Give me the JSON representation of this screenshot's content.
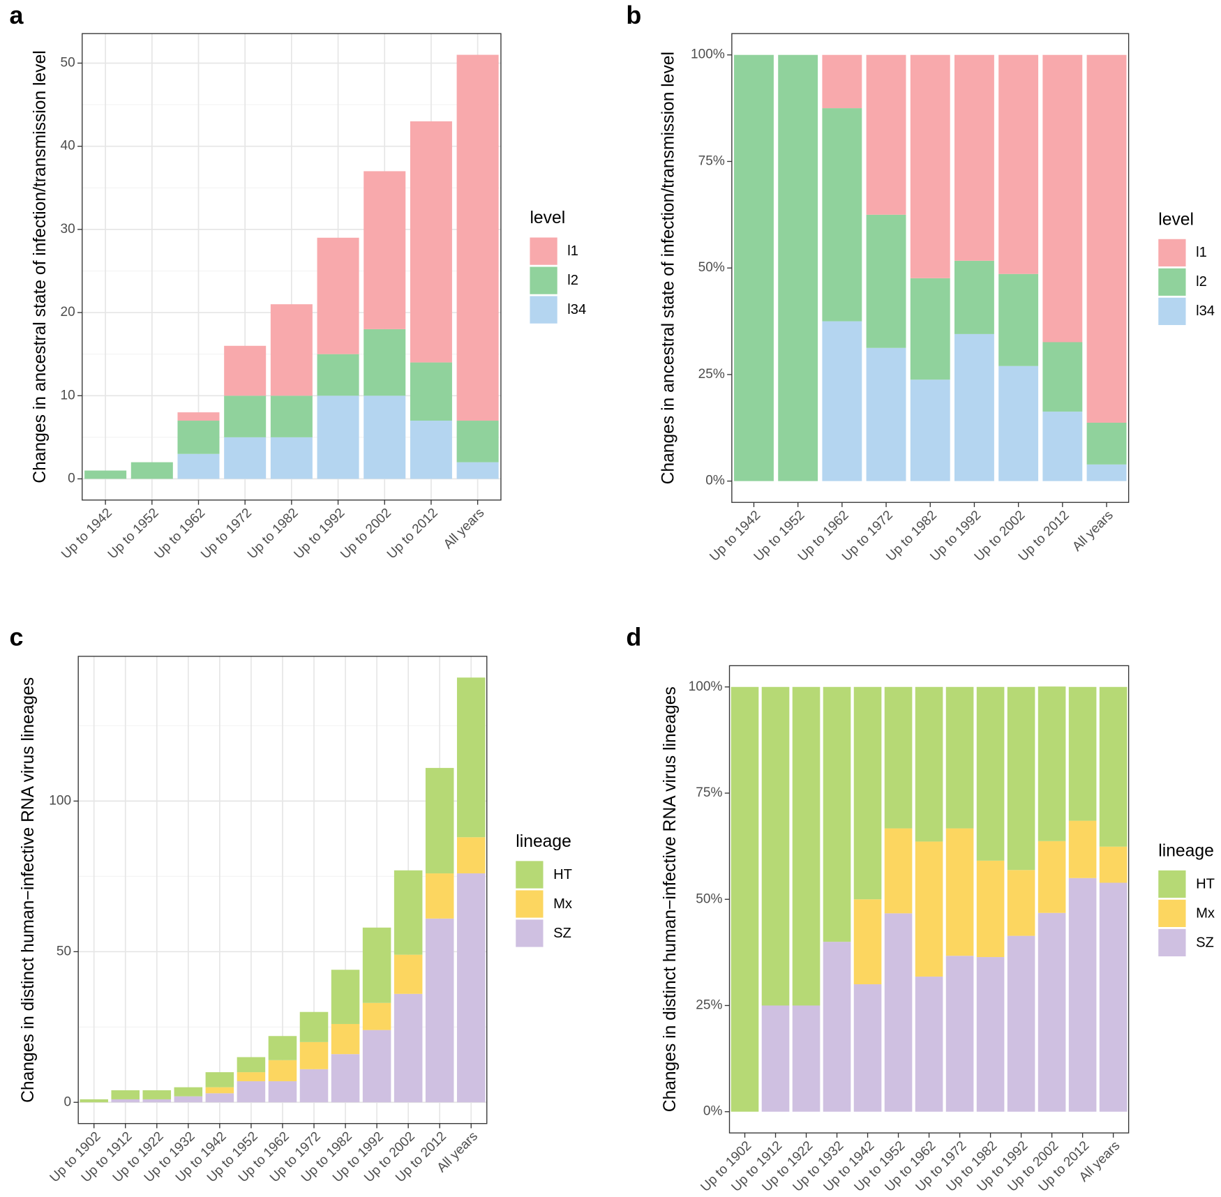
{
  "chart_data": [
    {
      "type": "bar",
      "stacked": true,
      "panel": "a",
      "ylabel": "Changes in ancestral state of infection/transmission level",
      "legend_title": "level",
      "categories": [
        "Up to 1942",
        "Up to 1952",
        "Up to 1962",
        "Up to 1972",
        "Up to 1982",
        "Up to 1992",
        "Up to 2002",
        "Up to 2012",
        "All years"
      ],
      "series": [
        {
          "name": "l1",
          "color": "#f8a9ac",
          "values": [
            0,
            0,
            1,
            6,
            11,
            14,
            19,
            29,
            44
          ]
        },
        {
          "name": "l2",
          "color": "#90d29c",
          "values": [
            1,
            2,
            4,
            5,
            5,
            5,
            8,
            7,
            5
          ]
        },
        {
          "name": "l34",
          "color": "#b4d5f0",
          "values": [
            0,
            0,
            3,
            5,
            5,
            10,
            10,
            7,
            2
          ]
        }
      ],
      "ylim": [
        -2.55,
        53.55
      ],
      "yticks": [
        0,
        10,
        20,
        30,
        40,
        50
      ],
      "yminor": [
        5,
        15,
        25,
        35,
        45
      ],
      "grid": true
    },
    {
      "type": "bar",
      "stacked": true,
      "panel": "b",
      "ylabel": "Changes in ancestral state of infection/transmission level",
      "legend_title": "level",
      "categories": [
        "Up to 1942",
        "Up to 1952",
        "Up to 1962",
        "Up to 1972",
        "Up to 1982",
        "Up to 1992",
        "Up to 2002",
        "Up to 2012",
        "All years"
      ],
      "series": [
        {
          "name": "l1",
          "color": "#f8a9ac",
          "values": [
            0,
            0,
            12.5,
            37.5,
            52.4,
            48.3,
            51.4,
            67.4,
            86.3
          ]
        },
        {
          "name": "l2",
          "color": "#90d29c",
          "values": [
            100,
            100,
            50,
            31.25,
            23.8,
            17.2,
            21.6,
            16.3,
            9.8
          ]
        },
        {
          "name": "l34",
          "color": "#b4d5f0",
          "values": [
            0,
            0,
            37.5,
            31.25,
            23.8,
            34.5,
            27.0,
            16.3,
            3.9
          ]
        }
      ],
      "ylim": [
        -5,
        105
      ],
      "yticks": [
        {
          "value": 0,
          "label": "0%"
        },
        {
          "value": 25,
          "label": "25%"
        },
        {
          "value": 50,
          "label": "50%"
        },
        {
          "value": 75,
          "label": "75%"
        },
        {
          "value": 100,
          "label": "100%"
        }
      ],
      "yminor": [],
      "grid": false
    },
    {
      "type": "bar",
      "stacked": true,
      "panel": "c",
      "ylabel": "Changes in distinct human−infective RNA virus lineages",
      "legend_title": "lineage",
      "categories": [
        "Up to 1902",
        "Up to 1912",
        "Up to 1922",
        "Up to 1932",
        "Up to 1942",
        "Up to 1952",
        "Up to 1962",
        "Up to 1972",
        "Up to 1982",
        "Up to 1992",
        "Up to 2002",
        "Up to 2012",
        "All years"
      ],
      "series": [
        {
          "name": "HT",
          "color": "#b6d975",
          "values": [
            1,
            3,
            3,
            3,
            5,
            5,
            8,
            10,
            18,
            25,
            28,
            35,
            53
          ]
        },
        {
          "name": "Mx",
          "color": "#fcd660",
          "values": [
            0,
            0,
            0,
            0,
            2,
            3,
            7,
            9,
            10,
            9,
            13,
            15,
            12
          ]
        },
        {
          "name": "SZ",
          "color": "#cfc0e1",
          "values": [
            0,
            1,
            1,
            2,
            3,
            7,
            7,
            11,
            16,
            24,
            36,
            61,
            76
          ]
        }
      ],
      "ylim": [
        -7.05,
        148.05
      ],
      "yticks": [
        0,
        50,
        100
      ],
      "yminor": [
        25,
        75,
        125
      ],
      "grid": true
    },
    {
      "type": "bar",
      "stacked": true,
      "panel": "d",
      "ylabel": "Changes in distinct human−infective RNA virus lineages",
      "legend_title": "lineage",
      "categories": [
        "Up to 1902",
        "Up to 1912",
        "Up to 1922",
        "Up to 1932",
        "Up to 1942",
        "Up to 1952",
        "Up to 1962",
        "Up to 1972",
        "Up to 1982",
        "Up to 1992",
        "Up to 2002",
        "Up to 2012",
        "All years"
      ],
      "series": [
        {
          "name": "HT",
          "color": "#b6d975",
          "values": [
            100,
            75,
            75,
            60,
            50,
            33.3,
            36.4,
            33.3,
            40.9,
            43.1,
            36.4,
            31.5,
            37.6
          ]
        },
        {
          "name": "Mx",
          "color": "#fcd660",
          "values": [
            0,
            0,
            0,
            0,
            20,
            20,
            31.8,
            30,
            22.7,
            15.5,
            16.9,
            13.5,
            8.5
          ]
        },
        {
          "name": "SZ",
          "color": "#cfc0e1",
          "values": [
            0,
            25,
            25,
            40,
            30,
            46.7,
            31.8,
            36.7,
            36.4,
            41.4,
            46.8,
            55,
            53.9
          ]
        }
      ],
      "ylim": [
        -5,
        105
      ],
      "yticks": [
        {
          "value": 0,
          "label": "0%"
        },
        {
          "value": 25,
          "label": "25%"
        },
        {
          "value": 50,
          "label": "50%"
        },
        {
          "value": 75,
          "label": "75%"
        },
        {
          "value": 100,
          "label": "100%"
        }
      ],
      "yminor": [],
      "grid": false
    }
  ]
}
